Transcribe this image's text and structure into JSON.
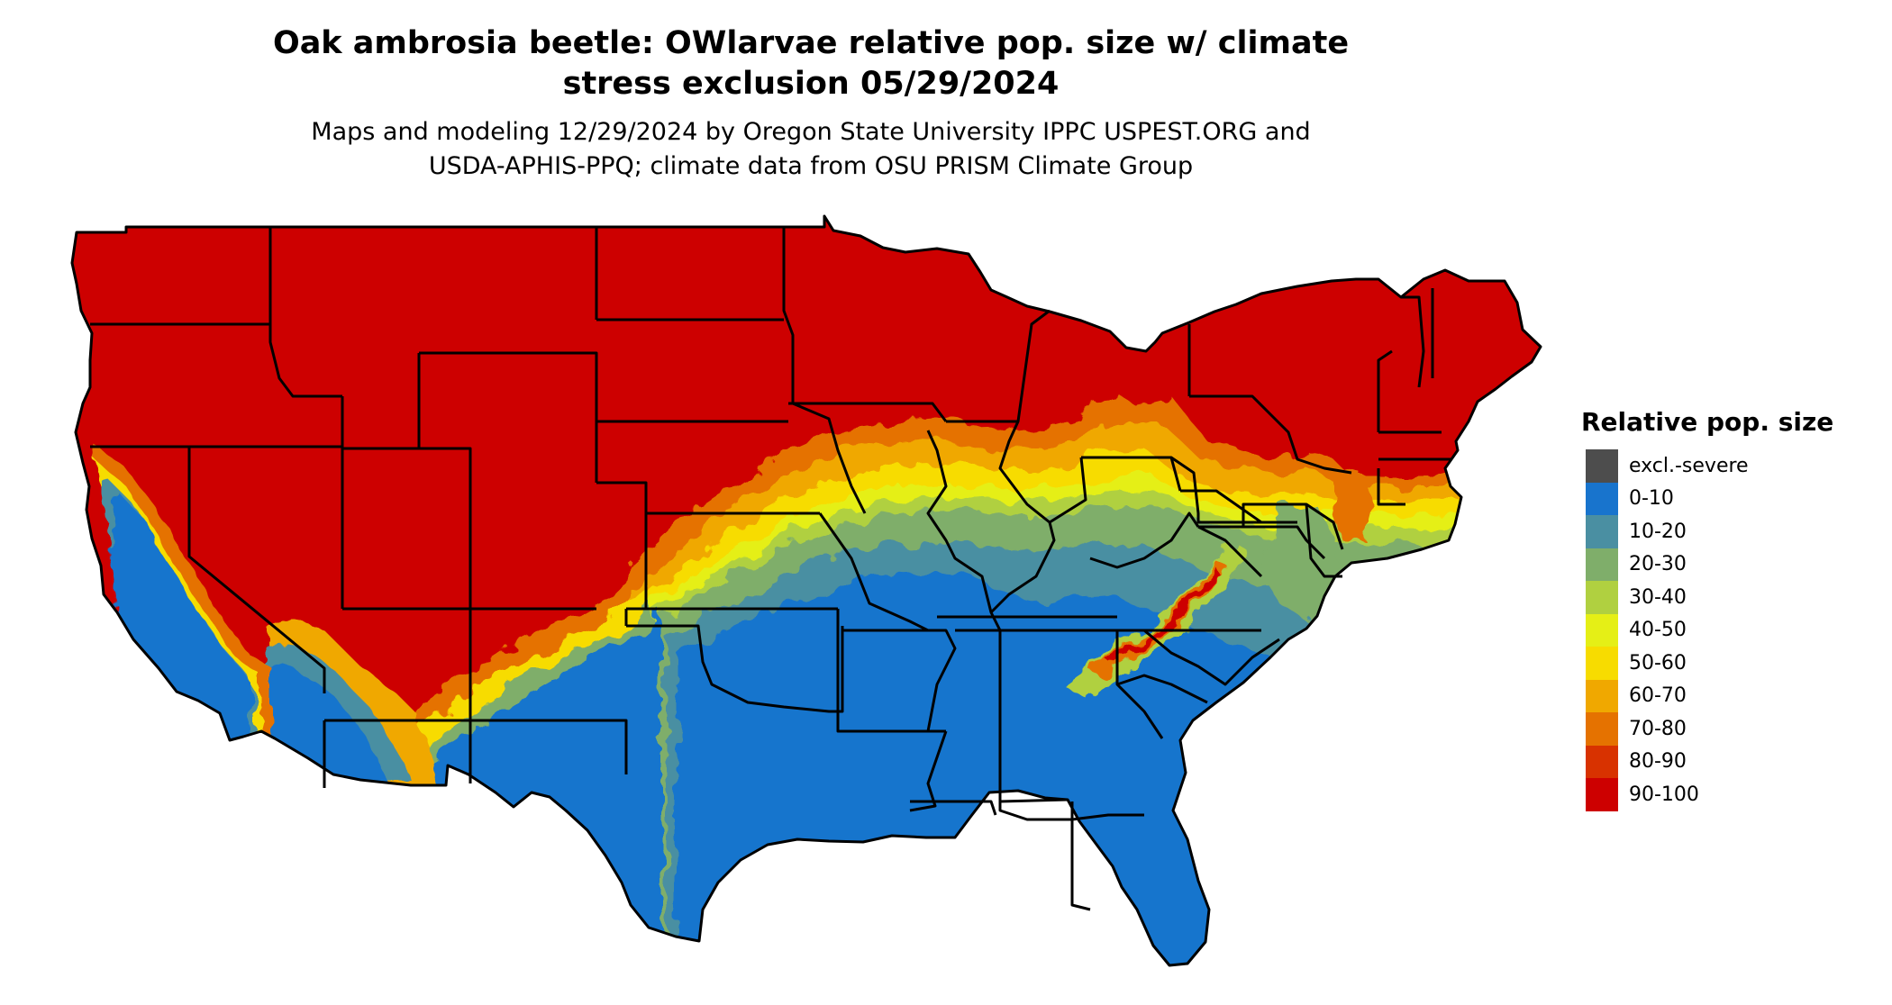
{
  "title": {
    "line1": "Oak ambrosia beetle: OWlarvae relative pop. size w/ climate",
    "line2": "stress exclusion 05/29/2024"
  },
  "subtitle": {
    "line1": "Maps and modeling 12/29/2024 by Oregon State University IPPC USPEST.ORG and",
    "line2": "USDA-APHIS-PPQ; climate data from OSU PRISM Climate Group"
  },
  "legend": {
    "title": "Relative pop. size",
    "items": [
      {
        "label": "excl.-severe",
        "color": "#4d4d4d"
      },
      {
        "label": "0-10",
        "color": "#1874cd"
      },
      {
        "label": "10-20",
        "color": "#4a8fa2"
      },
      {
        "label": "20-30",
        "color": "#7fae6a"
      },
      {
        "label": "30-40",
        "color": "#b0d040"
      },
      {
        "label": "40-50",
        "color": "#e5ef16"
      },
      {
        "label": "50-60",
        "color": "#f7dc00"
      },
      {
        "label": "60-70",
        "color": "#f0a800"
      },
      {
        "label": "70-80",
        "color": "#e57200"
      },
      {
        "label": "80-90",
        "color": "#d83200"
      },
      {
        "label": "90-100",
        "color": "#cd0000"
      }
    ]
  },
  "map": {
    "region": "contiguous-united-states",
    "background_color": "#ffffff",
    "border_color": "#000000"
  }
}
